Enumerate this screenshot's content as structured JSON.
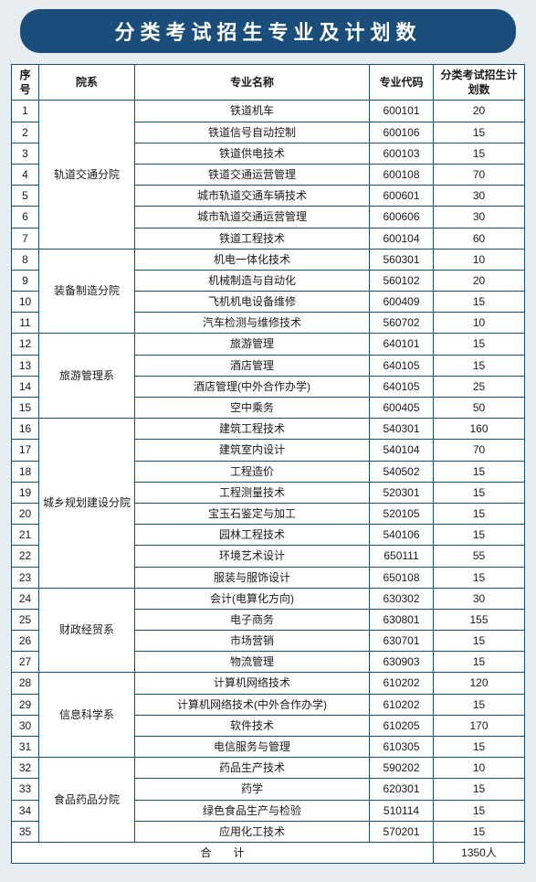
{
  "title": "分类考试招生专业及计划数",
  "headers": {
    "seq": "序号",
    "dept": "院系",
    "major": "专业名称",
    "code": "专业代码",
    "plan": "分类考试招生计划数"
  },
  "departments": [
    {
      "name": "轨道交通分院",
      "rows": [
        {
          "seq": "1",
          "major": "铁道机车",
          "code": "600101",
          "plan": "20"
        },
        {
          "seq": "2",
          "major": "铁道信号自动控制",
          "code": "600106",
          "plan": "15"
        },
        {
          "seq": "3",
          "major": "铁道供电技术",
          "code": "600103",
          "plan": "15"
        },
        {
          "seq": "4",
          "major": "铁道交通运营管理",
          "code": "600108",
          "plan": "70"
        },
        {
          "seq": "5",
          "major": "城市轨道交通车辆技术",
          "code": "600601",
          "plan": "30"
        },
        {
          "seq": "6",
          "major": "城市轨道交通运营管理",
          "code": "600606",
          "plan": "30"
        },
        {
          "seq": "7",
          "major": "铁道工程技术",
          "code": "600104",
          "plan": "60"
        }
      ]
    },
    {
      "name": "装备制造分院",
      "rows": [
        {
          "seq": "8",
          "major": "机电一体化技术",
          "code": "560301",
          "plan": "10"
        },
        {
          "seq": "9",
          "major": "机械制造与自动化",
          "code": "560102",
          "plan": "20"
        },
        {
          "seq": "10",
          "major": "飞机机电设备维修",
          "code": "600409",
          "plan": "15"
        },
        {
          "seq": "11",
          "major": "汽车检测与维修技术",
          "code": "560702",
          "plan": "10"
        }
      ]
    },
    {
      "name": "旅游管理系",
      "rows": [
        {
          "seq": "12",
          "major": "旅游管理",
          "code": "640101",
          "plan": "15"
        },
        {
          "seq": "13",
          "major": "酒店管理",
          "code": "640105",
          "plan": "15"
        },
        {
          "seq": "14",
          "major": "酒店管理(中外合作办学)",
          "code": "640105",
          "plan": "25"
        },
        {
          "seq": "15",
          "major": "空中乘务",
          "code": "600405",
          "plan": "50"
        }
      ]
    },
    {
      "name": "城乡规划建设分院",
      "rows": [
        {
          "seq": "16",
          "major": "建筑工程技术",
          "code": "540301",
          "plan": "160"
        },
        {
          "seq": "17",
          "major": "建筑室内设计",
          "code": "540104",
          "plan": "70"
        },
        {
          "seq": "18",
          "major": "工程造价",
          "code": "540502",
          "plan": "15"
        },
        {
          "seq": "19",
          "major": "工程测量技术",
          "code": "520301",
          "plan": "15"
        },
        {
          "seq": "20",
          "major": "宝玉石鉴定与加工",
          "code": "520105",
          "plan": "15"
        },
        {
          "seq": "21",
          "major": "园林工程技术",
          "code": "540106",
          "plan": "15"
        },
        {
          "seq": "22",
          "major": "环境艺术设计",
          "code": "650111",
          "plan": "55"
        },
        {
          "seq": "23",
          "major": "服装与服饰设计",
          "code": "650108",
          "plan": "15"
        }
      ]
    },
    {
      "name": "财政经贸系",
      "rows": [
        {
          "seq": "24",
          "major": "会计(电算化方向)",
          "code": "630302",
          "plan": "30"
        },
        {
          "seq": "25",
          "major": "电子商务",
          "code": "630801",
          "plan": "155"
        },
        {
          "seq": "26",
          "major": "市场营销",
          "code": "630701",
          "plan": "15"
        },
        {
          "seq": "27",
          "major": "物流管理",
          "code": "630903",
          "plan": "15"
        }
      ]
    },
    {
      "name": "信息科学系",
      "rows": [
        {
          "seq": "28",
          "major": "计算机网络技术",
          "code": "610202",
          "plan": "120"
        },
        {
          "seq": "29",
          "major": "计算机网络技术(中外合作办学)",
          "code": "610202",
          "plan": "15"
        },
        {
          "seq": "30",
          "major": "软件技术",
          "code": "610205",
          "plan": "170"
        },
        {
          "seq": "31",
          "major": "电信服务与管理",
          "code": "610305",
          "plan": "15"
        }
      ]
    },
    {
      "name": "食品药品分院",
      "rows": [
        {
          "seq": "32",
          "major": "药品生产技术",
          "code": "590202",
          "plan": "10"
        },
        {
          "seq": "33",
          "major": "药学",
          "code": "620301",
          "plan": "15"
        },
        {
          "seq": "34",
          "major": "绿色食品生产与检验",
          "code": "510114",
          "plan": "15"
        },
        {
          "seq": "35",
          "major": "应用化工技术",
          "code": "570201",
          "plan": "15"
        }
      ]
    }
  ],
  "total": {
    "label": "合　　计",
    "value": "1350人"
  }
}
